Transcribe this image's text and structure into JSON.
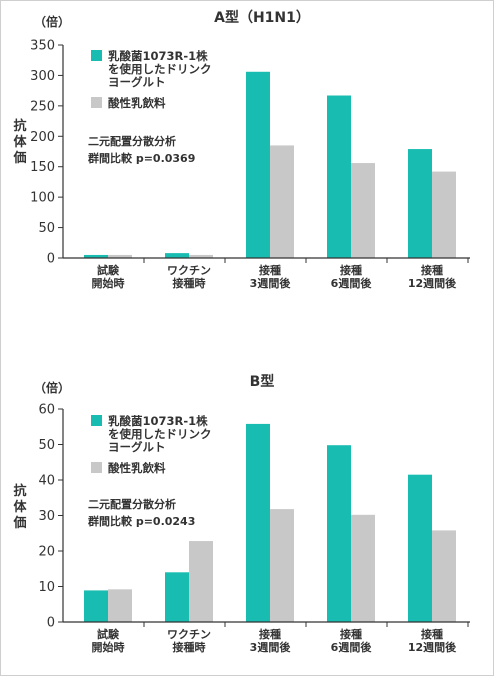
{
  "chart_data": [
    {
      "type": "bar",
      "title": "A型（H1N1）",
      "unit_label": "（倍）",
      "ylabel": "抗体価",
      "ylim": [
        0,
        350
      ],
      "yticks": [
        0,
        50,
        100,
        150,
        200,
        250,
        300,
        350
      ],
      "categories": [
        [
          "試験",
          "開始時"
        ],
        [
          "ワクチン",
          "接種時"
        ],
        [
          "接種",
          "3週間後"
        ],
        [
          "接種",
          "6週間後"
        ],
        [
          "接種",
          "12週間後"
        ]
      ],
      "series": [
        {
          "name": [
            "乳酸菌1073R-1株",
            "を使用したドリンク",
            "ヨーグルト"
          ],
          "color": "#18bcb0",
          "values": [
            5,
            8,
            306,
            267,
            179
          ]
        },
        {
          "name": [
            "酸性乳飲料"
          ],
          "color": "#c8c8c8",
          "values": [
            5,
            5,
            185,
            156,
            142
          ]
        }
      ],
      "annotation": [
        "二元配置分散分析",
        "群間比較 p=0.0369"
      ]
    },
    {
      "type": "bar",
      "title": "B型",
      "unit_label": "（倍）",
      "ylabel": "抗体価",
      "ylim": [
        0,
        60
      ],
      "yticks": [
        0,
        10,
        20,
        30,
        40,
        50,
        60
      ],
      "categories": [
        [
          "試験",
          "開始時"
        ],
        [
          "ワクチン",
          "接種時"
        ],
        [
          "接種",
          "3週間後"
        ],
        [
          "接種",
          "6週間後"
        ],
        [
          "接種",
          "12週間後"
        ]
      ],
      "series": [
        {
          "name": [
            "乳酸菌1073R-1株",
            "を使用したドリンク",
            "ヨーグルト"
          ],
          "color": "#18bcb0",
          "values": [
            8.9,
            14,
            55.8,
            49.8,
            41.5
          ]
        },
        {
          "name": [
            "酸性乳飲料"
          ],
          "color": "#c8c8c8",
          "values": [
            9.2,
            22.8,
            31.8,
            30.2,
            25.8
          ]
        }
      ],
      "annotation": [
        "二元配置分散分析",
        "群間比較 p=0.0243"
      ]
    }
  ]
}
